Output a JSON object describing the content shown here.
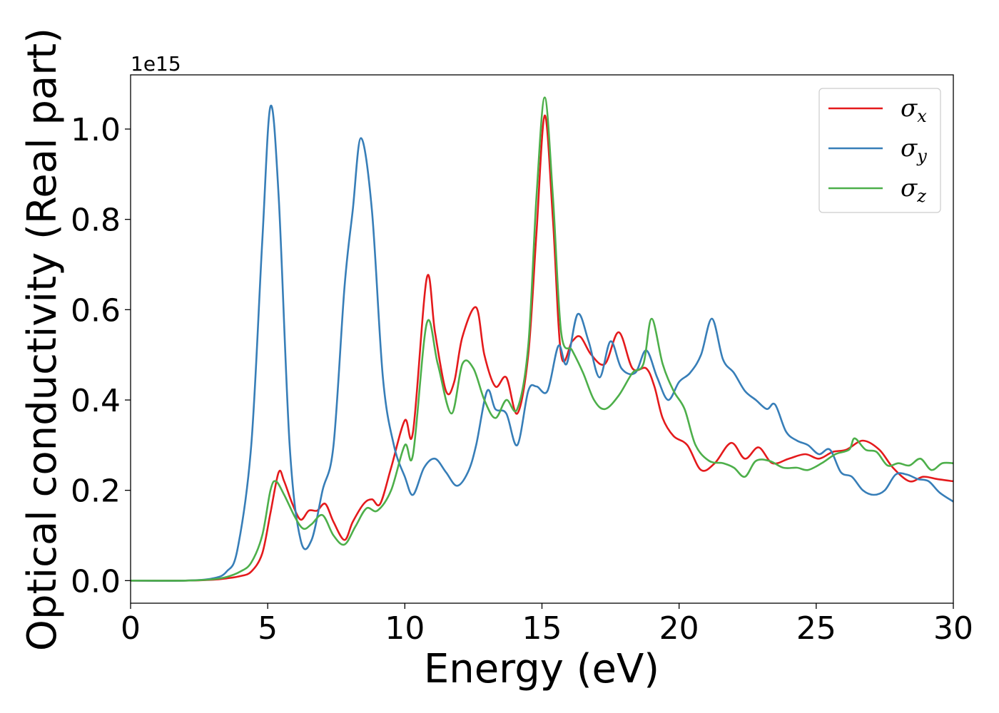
{
  "chart_data": {
    "type": "line",
    "xlabel": "Energy (eV)",
    "ylabel": "Optical conductivity (Real part)",
    "y_offset_text": "1e15",
    "xlim": [
      0,
      30
    ],
    "ylim": [
      -0.05,
      1.12
    ],
    "x_ticks": [
      0,
      5,
      10,
      15,
      20,
      25,
      30
    ],
    "x_tick_labels": [
      "0",
      "5",
      "10",
      "15",
      "20",
      "25",
      "30"
    ],
    "y_ticks": [
      0.0,
      0.2,
      0.4,
      0.6,
      0.8,
      1.0
    ],
    "y_tick_labels": [
      "0.0",
      "0.2",
      "0.4",
      "0.6",
      "0.8",
      "1.0"
    ],
    "grid": false,
    "legend_position": "top-right",
    "series": [
      {
        "name": "σ",
        "subscript": "x",
        "color": "#e41a1c",
        "points": [
          [
            0,
            0
          ],
          [
            2,
            0.0
          ],
          [
            3,
            0.002
          ],
          [
            3.5,
            0.005
          ],
          [
            4,
            0.01
          ],
          [
            4.4,
            0.02
          ],
          [
            4.8,
            0.06
          ],
          [
            5.1,
            0.15
          ],
          [
            5.4,
            0.24
          ],
          [
            5.6,
            0.22
          ],
          [
            5.9,
            0.17
          ],
          [
            6.2,
            0.135
          ],
          [
            6.5,
            0.155
          ],
          [
            6.8,
            0.155
          ],
          [
            7.1,
            0.17
          ],
          [
            7.4,
            0.13
          ],
          [
            7.8,
            0.09
          ],
          [
            8.1,
            0.13
          ],
          [
            8.5,
            0.17
          ],
          [
            8.8,
            0.18
          ],
          [
            9.1,
            0.17
          ],
          [
            9.5,
            0.25
          ],
          [
            10.0,
            0.355
          ],
          [
            10.3,
            0.33
          ],
          [
            10.8,
            0.67
          ],
          [
            11.1,
            0.55
          ],
          [
            11.5,
            0.42
          ],
          [
            11.8,
            0.44
          ],
          [
            12.1,
            0.54
          ],
          [
            12.6,
            0.605
          ],
          [
            12.9,
            0.5
          ],
          [
            13.3,
            0.43
          ],
          [
            13.7,
            0.45
          ],
          [
            14.1,
            0.37
          ],
          [
            14.5,
            0.5
          ],
          [
            14.8,
            0.77
          ],
          [
            15.1,
            1.03
          ],
          [
            15.4,
            0.8
          ],
          [
            15.7,
            0.5
          ],
          [
            16.1,
            0.53
          ],
          [
            16.4,
            0.54
          ],
          [
            16.8,
            0.5
          ],
          [
            17.3,
            0.48
          ],
          [
            17.8,
            0.55
          ],
          [
            18.3,
            0.47
          ],
          [
            18.8,
            0.47
          ],
          [
            19.1,
            0.43
          ],
          [
            19.4,
            0.36
          ],
          [
            19.8,
            0.32
          ],
          [
            20.3,
            0.3
          ],
          [
            20.8,
            0.245
          ],
          [
            21.3,
            0.26
          ],
          [
            21.9,
            0.305
          ],
          [
            22.4,
            0.27
          ],
          [
            22.9,
            0.295
          ],
          [
            23.4,
            0.26
          ],
          [
            24.0,
            0.27
          ],
          [
            24.6,
            0.28
          ],
          [
            25.1,
            0.27
          ],
          [
            25.6,
            0.285
          ],
          [
            26.1,
            0.29
          ],
          [
            26.7,
            0.31
          ],
          [
            27.3,
            0.29
          ],
          [
            27.8,
            0.25
          ],
          [
            28.4,
            0.22
          ],
          [
            28.9,
            0.23
          ],
          [
            29.4,
            0.225
          ],
          [
            30,
            0.22
          ]
        ]
      },
      {
        "name": "σ",
        "subscript": "y",
        "color": "#377eb8",
        "points": [
          [
            0,
            0
          ],
          [
            2,
            0.0
          ],
          [
            3,
            0.005
          ],
          [
            3.5,
            0.02
          ],
          [
            3.9,
            0.07
          ],
          [
            4.4,
            0.3
          ],
          [
            4.8,
            0.75
          ],
          [
            5.1,
            1.05
          ],
          [
            5.4,
            0.85
          ],
          [
            5.8,
            0.3
          ],
          [
            6.2,
            0.09
          ],
          [
            6.6,
            0.09
          ],
          [
            7.0,
            0.2
          ],
          [
            7.4,
            0.3
          ],
          [
            7.8,
            0.65
          ],
          [
            8.1,
            0.82
          ],
          [
            8.4,
            0.98
          ],
          [
            8.8,
            0.82
          ],
          [
            9.2,
            0.45
          ],
          [
            9.6,
            0.3
          ],
          [
            10.0,
            0.23
          ],
          [
            10.3,
            0.19
          ],
          [
            10.7,
            0.25
          ],
          [
            11.1,
            0.27
          ],
          [
            11.5,
            0.24
          ],
          [
            11.9,
            0.21
          ],
          [
            12.3,
            0.24
          ],
          [
            12.6,
            0.3
          ],
          [
            13.0,
            0.42
          ],
          [
            13.3,
            0.38
          ],
          [
            13.7,
            0.37
          ],
          [
            14.1,
            0.3
          ],
          [
            14.5,
            0.42
          ],
          [
            14.8,
            0.43
          ],
          [
            15.2,
            0.42
          ],
          [
            15.6,
            0.52
          ],
          [
            15.9,
            0.48
          ],
          [
            16.3,
            0.59
          ],
          [
            16.7,
            0.53
          ],
          [
            17.1,
            0.45
          ],
          [
            17.5,
            0.53
          ],
          [
            17.9,
            0.47
          ],
          [
            18.4,
            0.46
          ],
          [
            18.8,
            0.51
          ],
          [
            19.2,
            0.45
          ],
          [
            19.6,
            0.4
          ],
          [
            20.0,
            0.44
          ],
          [
            20.4,
            0.46
          ],
          [
            20.8,
            0.5
          ],
          [
            21.2,
            0.58
          ],
          [
            21.6,
            0.49
          ],
          [
            22.0,
            0.46
          ],
          [
            22.4,
            0.42
          ],
          [
            22.8,
            0.4
          ],
          [
            23.2,
            0.38
          ],
          [
            23.5,
            0.39
          ],
          [
            23.9,
            0.33
          ],
          [
            24.3,
            0.31
          ],
          [
            24.7,
            0.3
          ],
          [
            25.1,
            0.28
          ],
          [
            25.5,
            0.29
          ],
          [
            25.9,
            0.24
          ],
          [
            26.3,
            0.23
          ],
          [
            26.7,
            0.2
          ],
          [
            27.1,
            0.19
          ],
          [
            27.5,
            0.2
          ],
          [
            27.9,
            0.235
          ],
          [
            28.3,
            0.235
          ],
          [
            28.7,
            0.225
          ],
          [
            29.1,
            0.22
          ],
          [
            29.5,
            0.195
          ],
          [
            30,
            0.175
          ]
        ]
      },
      {
        "name": "σ",
        "subscript": "z",
        "color": "#4daf4a",
        "points": [
          [
            0,
            0
          ],
          [
            2,
            0.0
          ],
          [
            3,
            0.003
          ],
          [
            3.5,
            0.008
          ],
          [
            4,
            0.02
          ],
          [
            4.4,
            0.04
          ],
          [
            4.8,
            0.1
          ],
          [
            5.1,
            0.2
          ],
          [
            5.3,
            0.22
          ],
          [
            5.6,
            0.19
          ],
          [
            6.0,
            0.14
          ],
          [
            6.3,
            0.115
          ],
          [
            6.6,
            0.125
          ],
          [
            7.0,
            0.145
          ],
          [
            7.4,
            0.1
          ],
          [
            7.8,
            0.08
          ],
          [
            8.2,
            0.12
          ],
          [
            8.6,
            0.16
          ],
          [
            9.0,
            0.155
          ],
          [
            9.5,
            0.2
          ],
          [
            10.0,
            0.3
          ],
          [
            10.3,
            0.28
          ],
          [
            10.8,
            0.57
          ],
          [
            11.2,
            0.48
          ],
          [
            11.7,
            0.37
          ],
          [
            12.1,
            0.48
          ],
          [
            12.5,
            0.47
          ],
          [
            12.9,
            0.4
          ],
          [
            13.3,
            0.36
          ],
          [
            13.7,
            0.4
          ],
          [
            14.1,
            0.38
          ],
          [
            14.5,
            0.52
          ],
          [
            14.8,
            0.85
          ],
          [
            15.1,
            1.07
          ],
          [
            15.4,
            0.85
          ],
          [
            15.7,
            0.55
          ],
          [
            16.1,
            0.51
          ],
          [
            16.5,
            0.46
          ],
          [
            16.9,
            0.4
          ],
          [
            17.3,
            0.38
          ],
          [
            17.8,
            0.41
          ],
          [
            18.3,
            0.46
          ],
          [
            18.7,
            0.48
          ],
          [
            19.0,
            0.58
          ],
          [
            19.4,
            0.48
          ],
          [
            19.8,
            0.42
          ],
          [
            20.2,
            0.38
          ],
          [
            20.6,
            0.3
          ],
          [
            21.1,
            0.265
          ],
          [
            21.6,
            0.26
          ],
          [
            22.0,
            0.25
          ],
          [
            22.4,
            0.23
          ],
          [
            22.8,
            0.265
          ],
          [
            23.3,
            0.265
          ],
          [
            23.8,
            0.25
          ],
          [
            24.3,
            0.25
          ],
          [
            24.7,
            0.245
          ],
          [
            25.2,
            0.26
          ],
          [
            25.7,
            0.28
          ],
          [
            26.2,
            0.29
          ],
          [
            26.4,
            0.315
          ],
          [
            26.8,
            0.29
          ],
          [
            27.2,
            0.285
          ],
          [
            27.6,
            0.255
          ],
          [
            28.0,
            0.26
          ],
          [
            28.4,
            0.255
          ],
          [
            28.8,
            0.27
          ],
          [
            29.2,
            0.245
          ],
          [
            29.6,
            0.26
          ],
          [
            30,
            0.26
          ]
        ]
      }
    ]
  }
}
